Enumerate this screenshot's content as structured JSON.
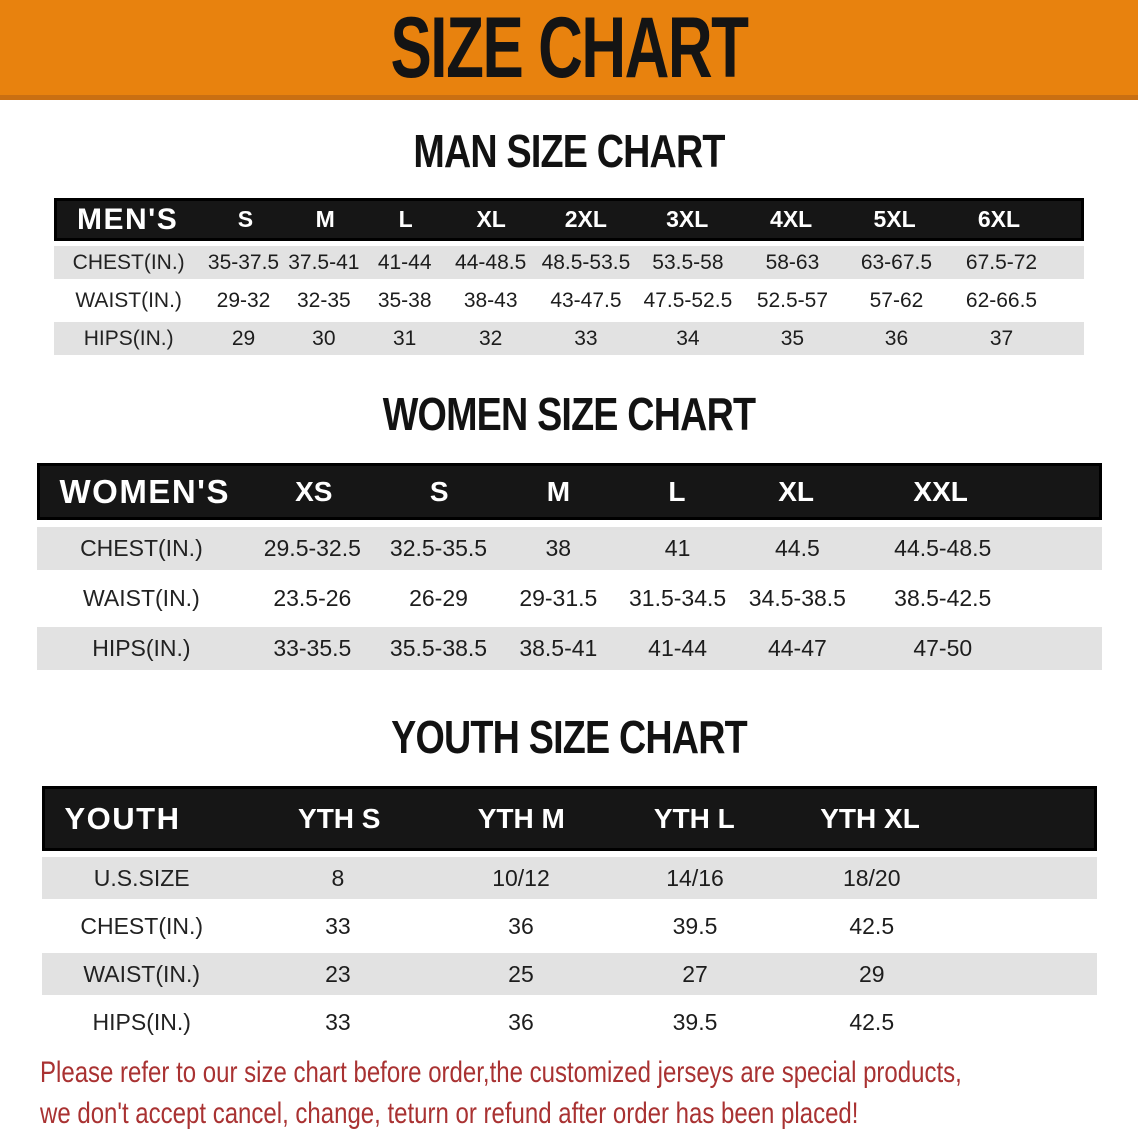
{
  "banner": {
    "title": "SIZE CHART"
  },
  "colors": {
    "banner_orange": "#E8820E",
    "header_bar_black": "#161616",
    "row_gray": "#E2E2E2",
    "note_red": "#A93232"
  },
  "men": {
    "heading": "MAN SIZE CHART",
    "header_label": "MEN'S",
    "columns": [
      "S",
      "M",
      "L",
      "XL",
      "2XL",
      "3XL",
      "4XL",
      "5XL",
      "6XL"
    ],
    "rows": [
      {
        "label": "CHEST(IN.)",
        "values": [
          "35-37.5",
          "37.5-41",
          "41-44",
          "44-48.5",
          "48.5-53.5",
          "53.5-58",
          "58-63",
          "63-67.5",
          "67.5-72"
        ]
      },
      {
        "label": "WAIST(IN.)",
        "values": [
          "29-32",
          "32-35",
          "35-38",
          "38-43",
          "43-47.5",
          "47.5-52.5",
          "52.5-57",
          "57-62",
          "62-66.5"
        ]
      },
      {
        "label": "HIPS(IN.)",
        "values": [
          "29",
          "30",
          "31",
          "32",
          "33",
          "34",
          "35",
          "36",
          "37"
        ]
      }
    ]
  },
  "women": {
    "heading": "WOMEN SIZE CHART",
    "header_label": "WOMEN'S",
    "columns": [
      "XS",
      "S",
      "M",
      "L",
      "XL",
      "XXL"
    ],
    "rows": [
      {
        "label": "CHEST(IN.)",
        "values": [
          "29.5-32.5",
          "32.5-35.5",
          "38",
          "41",
          "44.5",
          "44.5-48.5"
        ]
      },
      {
        "label": "WAIST(IN.)",
        "values": [
          "23.5-26",
          "26-29",
          "29-31.5",
          "31.5-34.5",
          "34.5-38.5",
          "38.5-42.5"
        ]
      },
      {
        "label": "HIPS(IN.)",
        "values": [
          "33-35.5",
          "35.5-38.5",
          "38.5-41",
          "41-44",
          "44-47",
          "47-50"
        ]
      }
    ]
  },
  "youth": {
    "heading": "YOUTH SIZE CHART",
    "header_label": "YOUTH",
    "columns": [
      "YTH S",
      "YTH M",
      "YTH L",
      "YTH XL"
    ],
    "rows": [
      {
        "label": "U.S.SIZE",
        "values": [
          "8",
          "10/12",
          "14/16",
          "18/20"
        ]
      },
      {
        "label": "CHEST(IN.)",
        "values": [
          "33",
          "36",
          "39.5",
          "42.5"
        ]
      },
      {
        "label": "WAIST(IN.)",
        "values": [
          "23",
          "25",
          "27",
          "29"
        ]
      },
      {
        "label": "HIPS(IN.)",
        "values": [
          "33",
          "36",
          "39.5",
          "42.5"
        ]
      }
    ]
  },
  "footer": {
    "line1": "Please refer to our size chart before order,the customized jerseys are special products,",
    "line2": "we don't accept cancel, change, teturn or refund after order has been placed!"
  }
}
